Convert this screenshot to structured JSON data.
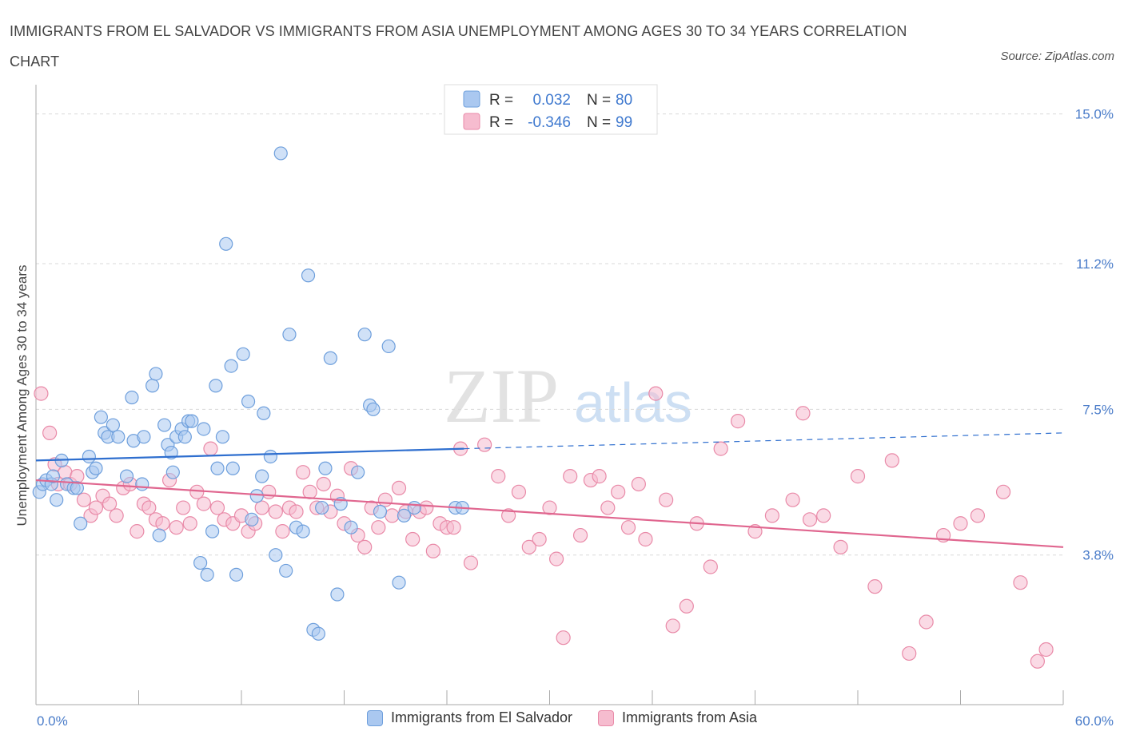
{
  "title": "IMMIGRANTS FROM EL SALVADOR VS IMMIGRANTS FROM ASIA UNEMPLOYMENT AMONG AGES 30 TO 34 YEARS CORRELATION CHART",
  "source": "Source: ZipAtlas.com",
  "watermark": {
    "zip": "ZIP",
    "atlas": "atlas"
  },
  "colors": {
    "blue_fill": "#aac8f0",
    "blue_stroke": "#6e9fdc",
    "blue_line": "#2f6fcf",
    "pink_fill": "#f6bccf",
    "pink_stroke": "#e98aa8",
    "pink_line": "#e0668f",
    "axis_text": "#4a7cc9",
    "grid": "#d9d9d9"
  },
  "legend": {
    "rows": [
      {
        "r_label": "R =",
        "r_value": "0.032",
        "n_label": "N =",
        "n_value": "80",
        "series": "blue"
      },
      {
        "r_label": "R =",
        "r_value": "-0.346",
        "n_label": "N =",
        "n_value": "99",
        "series": "pink"
      }
    ]
  },
  "bottom_legend": {
    "blue": "Immigrants from El Salvador",
    "pink": "Immigrants from Asia"
  },
  "chart_data": {
    "type": "scatter",
    "title": "IMMIGRANTS FROM EL SALVADOR VS IMMIGRANTS FROM ASIA UNEMPLOYMENT AMONG AGES 30 TO 34 YEARS CORRELATION CHART",
    "xlabel": "",
    "ylabel": "Unemployment Among Ages 30 to 34 years",
    "xlim": [
      0,
      60
    ],
    "ylim": [
      0,
      15.5
    ],
    "y_ticks": [
      {
        "value": 3.8,
        "label": "3.8%"
      },
      {
        "value": 7.5,
        "label": "7.5%"
      },
      {
        "value": 11.2,
        "label": "11.2%"
      },
      {
        "value": 15.0,
        "label": "15.0%"
      }
    ],
    "x_tick_labels": {
      "min": "0.0%",
      "max": "60.0%"
    },
    "x_minor_ticks": [
      6,
      12,
      18,
      24,
      30,
      36,
      42,
      48,
      54,
      60
    ],
    "series": [
      {
        "name": "Immigrants from El Salvador",
        "color": "blue",
        "R": 0.032,
        "N": 80,
        "trend": {
          "x0": 0,
          "y0": 6.2,
          "x1": 25,
          "y1": 6.5,
          "dash_x1": 60,
          "dash_y1": 6.9
        },
        "points": [
          [
            0.2,
            5.4
          ],
          [
            0.4,
            5.6
          ],
          [
            0.6,
            5.7
          ],
          [
            0.9,
            5.6
          ],
          [
            1.0,
            5.8
          ],
          [
            1.2,
            5.2
          ],
          [
            1.5,
            6.2
          ],
          [
            1.8,
            5.6
          ],
          [
            2.2,
            5.5
          ],
          [
            2.4,
            5.5
          ],
          [
            2.6,
            4.6
          ],
          [
            3.1,
            6.3
          ],
          [
            3.3,
            5.9
          ],
          [
            3.5,
            6.0
          ],
          [
            3.8,
            7.3
          ],
          [
            4.0,
            6.9
          ],
          [
            4.2,
            6.8
          ],
          [
            4.5,
            7.1
          ],
          [
            4.8,
            6.8
          ],
          [
            5.3,
            5.8
          ],
          [
            5.6,
            7.8
          ],
          [
            5.7,
            6.7
          ],
          [
            6.2,
            5.6
          ],
          [
            6.3,
            6.8
          ],
          [
            6.8,
            8.1
          ],
          [
            7.0,
            8.4
          ],
          [
            7.2,
            4.3
          ],
          [
            7.5,
            7.1
          ],
          [
            7.7,
            6.6
          ],
          [
            7.9,
            6.4
          ],
          [
            8.0,
            5.9
          ],
          [
            8.2,
            6.8
          ],
          [
            8.5,
            7.0
          ],
          [
            8.7,
            6.8
          ],
          [
            8.9,
            7.2
          ],
          [
            9.1,
            7.2
          ],
          [
            9.6,
            3.6
          ],
          [
            9.8,
            7.0
          ],
          [
            10.0,
            3.3
          ],
          [
            10.3,
            4.4
          ],
          [
            10.5,
            8.1
          ],
          [
            10.6,
            6.0
          ],
          [
            10.9,
            6.8
          ],
          [
            11.1,
            11.7
          ],
          [
            11.4,
            8.6
          ],
          [
            11.5,
            6.0
          ],
          [
            11.7,
            3.3
          ],
          [
            12.1,
            8.9
          ],
          [
            12.4,
            7.7
          ],
          [
            12.6,
            4.7
          ],
          [
            12.9,
            5.3
          ],
          [
            13.2,
            5.8
          ],
          [
            13.3,
            7.4
          ],
          [
            13.7,
            6.3
          ],
          [
            14.0,
            3.8
          ],
          [
            14.3,
            14.0
          ],
          [
            14.6,
            3.4
          ],
          [
            14.8,
            9.4
          ],
          [
            15.2,
            4.5
          ],
          [
            15.6,
            4.4
          ],
          [
            15.9,
            10.9
          ],
          [
            16.2,
            1.9
          ],
          [
            16.5,
            1.8
          ],
          [
            16.7,
            5.0
          ],
          [
            16.9,
            6.0
          ],
          [
            17.2,
            8.8
          ],
          [
            17.6,
            2.8
          ],
          [
            17.8,
            5.1
          ],
          [
            18.4,
            4.5
          ],
          [
            18.8,
            5.9
          ],
          [
            19.2,
            9.4
          ],
          [
            19.5,
            7.6
          ],
          [
            19.7,
            7.5
          ],
          [
            20.1,
            4.9
          ],
          [
            20.6,
            9.1
          ],
          [
            21.2,
            3.1
          ],
          [
            21.5,
            4.8
          ],
          [
            22.1,
            5.0
          ],
          [
            24.5,
            5.0
          ],
          [
            24.9,
            5.0
          ]
        ]
      },
      {
        "name": "Immigrants from Asia",
        "color": "pink",
        "R": -0.346,
        "N": 99,
        "trend": {
          "x0": 0,
          "y0": 5.7,
          "x1": 60,
          "y1": 4.0
        },
        "points": [
          [
            0.3,
            7.9
          ],
          [
            0.8,
            6.9
          ],
          [
            1.1,
            6.1
          ],
          [
            1.3,
            5.6
          ],
          [
            1.7,
            5.9
          ],
          [
            2.0,
            5.6
          ],
          [
            2.4,
            5.8
          ],
          [
            2.8,
            5.2
          ],
          [
            3.2,
            4.8
          ],
          [
            3.5,
            5.0
          ],
          [
            3.9,
            5.3
          ],
          [
            4.3,
            5.1
          ],
          [
            4.7,
            4.8
          ],
          [
            5.1,
            5.5
          ],
          [
            5.5,
            5.6
          ],
          [
            5.9,
            4.4
          ],
          [
            6.3,
            5.1
          ],
          [
            6.6,
            5.0
          ],
          [
            7.0,
            4.7
          ],
          [
            7.4,
            4.6
          ],
          [
            7.8,
            5.7
          ],
          [
            8.2,
            4.5
          ],
          [
            8.6,
            5.0
          ],
          [
            9.0,
            4.6
          ],
          [
            9.4,
            5.4
          ],
          [
            9.8,
            5.1
          ],
          [
            10.2,
            6.5
          ],
          [
            10.6,
            5.0
          ],
          [
            11.0,
            4.7
          ],
          [
            11.5,
            4.6
          ],
          [
            12.0,
            4.8
          ],
          [
            12.4,
            4.4
          ],
          [
            12.8,
            4.6
          ],
          [
            13.2,
            5.0
          ],
          [
            13.6,
            5.4
          ],
          [
            14.0,
            4.9
          ],
          [
            14.4,
            4.4
          ],
          [
            14.8,
            5.0
          ],
          [
            15.2,
            4.9
          ],
          [
            15.6,
            5.9
          ],
          [
            16.0,
            5.4
          ],
          [
            16.4,
            5.0
          ],
          [
            16.8,
            5.6
          ],
          [
            17.2,
            4.9
          ],
          [
            17.6,
            5.3
          ],
          [
            18.0,
            4.6
          ],
          [
            18.4,
            6.0
          ],
          [
            18.8,
            4.3
          ],
          [
            19.2,
            4.0
          ],
          [
            19.6,
            5.0
          ],
          [
            20.0,
            4.5
          ],
          [
            20.4,
            5.2
          ],
          [
            20.8,
            4.8
          ],
          [
            21.2,
            5.5
          ],
          [
            21.6,
            4.9
          ],
          [
            22.0,
            4.2
          ],
          [
            22.4,
            4.9
          ],
          [
            22.8,
            5.0
          ],
          [
            23.2,
            3.9
          ],
          [
            23.6,
            4.6
          ],
          [
            24.0,
            4.5
          ],
          [
            24.4,
            4.5
          ],
          [
            24.8,
            6.5
          ],
          [
            25.4,
            3.6
          ],
          [
            26.2,
            6.6
          ],
          [
            27.0,
            5.8
          ],
          [
            27.6,
            4.8
          ],
          [
            28.2,
            5.4
          ],
          [
            28.8,
            4.0
          ],
          [
            29.4,
            4.2
          ],
          [
            30.0,
            5.0
          ],
          [
            30.4,
            3.7
          ],
          [
            31.2,
            5.8
          ],
          [
            31.8,
            4.3
          ],
          [
            32.4,
            5.7
          ],
          [
            32.9,
            5.8
          ],
          [
            33.4,
            5.0
          ],
          [
            34.0,
            5.4
          ],
          [
            34.6,
            4.5
          ],
          [
            35.2,
            5.6
          ],
          [
            35.6,
            4.2
          ],
          [
            36.2,
            7.9
          ],
          [
            36.8,
            5.2
          ],
          [
            37.2,
            2.0
          ],
          [
            38.0,
            2.5
          ],
          [
            38.6,
            4.6
          ],
          [
            39.4,
            3.5
          ],
          [
            40.0,
            6.5
          ],
          [
            41.0,
            7.2
          ],
          [
            42.0,
            4.4
          ],
          [
            44.2,
            5.2
          ],
          [
            44.8,
            7.4
          ],
          [
            45.2,
            4.7
          ],
          [
            46.0,
            4.8
          ],
          [
            48.0,
            5.8
          ],
          [
            49.0,
            3.0
          ],
          [
            50.0,
            6.2
          ],
          [
            51.0,
            1.3
          ],
          [
            52.0,
            2.1
          ]
        ],
        "extra_points": [
          [
            53.0,
            4.3
          ],
          [
            54.0,
            4.6
          ],
          [
            55.0,
            4.8
          ],
          [
            56.5,
            5.4
          ],
          [
            57.5,
            3.1
          ],
          [
            58.5,
            1.1
          ],
          [
            59.0,
            1.4
          ],
          [
            43.0,
            4.8
          ],
          [
            47.0,
            4.0
          ],
          [
            30.8,
            1.7
          ]
        ]
      }
    ]
  }
}
